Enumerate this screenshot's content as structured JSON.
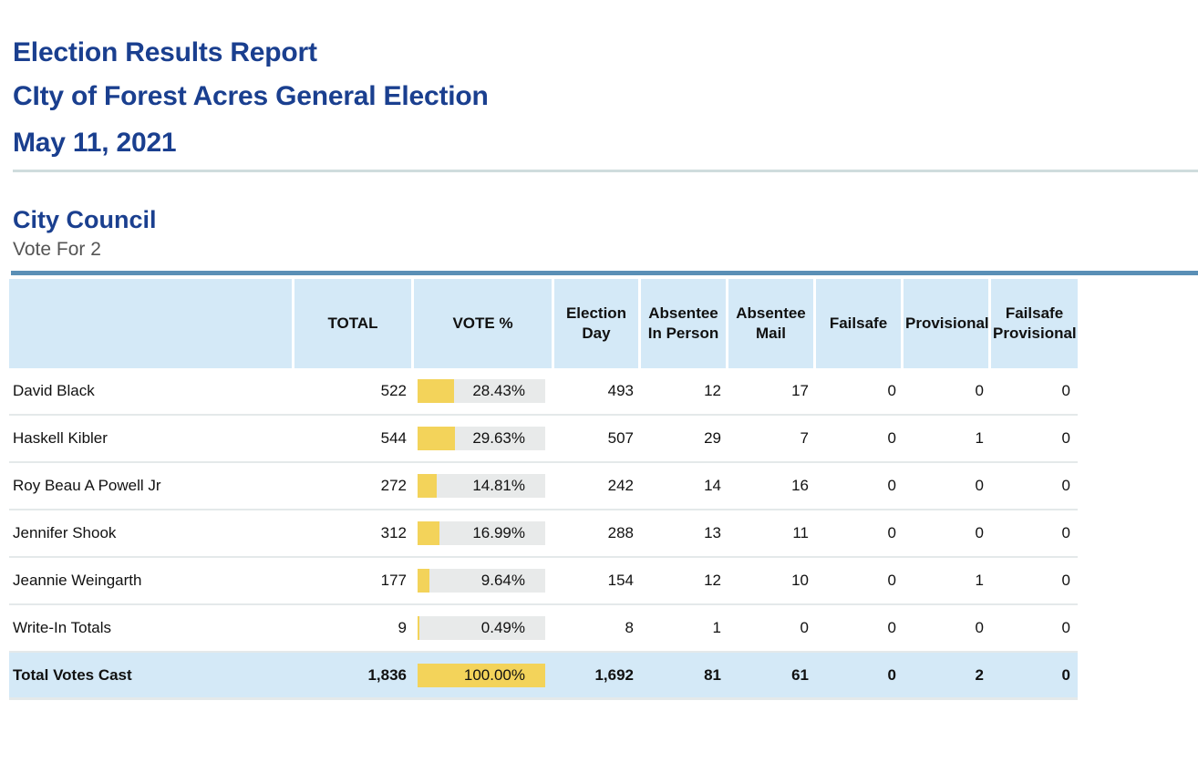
{
  "report": {
    "title_line1": "Election Results Report",
    "title_line2": "CIty of Forest Acres General Election",
    "title_line3": "May 11, 2021"
  },
  "contest": {
    "title": "City Council",
    "subtitle": "Vote For 2"
  },
  "table": {
    "headers": {
      "name": "",
      "total": "TOTAL",
      "vote_pct": "VOTE %",
      "election_day": "Election Day",
      "absentee_in_person": "Absentee In Person",
      "absentee_mail": "Absentee Mail",
      "failsafe": "Failsafe",
      "provisional": "Provisional",
      "failsafe_provisional": "Failsafe Provisional"
    },
    "rows": [
      {
        "name": "David Black",
        "total": "522",
        "pct_label": "28.43%",
        "pct": 28.43,
        "election_day": "493",
        "absentee_in_person": "12",
        "absentee_mail": "17",
        "failsafe": "0",
        "provisional": "0",
        "failsafe_provisional": "0"
      },
      {
        "name": "Haskell Kibler",
        "total": "544",
        "pct_label": "29.63%",
        "pct": 29.63,
        "election_day": "507",
        "absentee_in_person": "29",
        "absentee_mail": "7",
        "failsafe": "0",
        "provisional": "1",
        "failsafe_provisional": "0"
      },
      {
        "name": "Roy Beau A Powell Jr",
        "total": "272",
        "pct_label": "14.81%",
        "pct": 14.81,
        "election_day": "242",
        "absentee_in_person": "14",
        "absentee_mail": "16",
        "failsafe": "0",
        "provisional": "0",
        "failsafe_provisional": "0"
      },
      {
        "name": "Jennifer Shook",
        "total": "312",
        "pct_label": "16.99%",
        "pct": 16.99,
        "election_day": "288",
        "absentee_in_person": "13",
        "absentee_mail": "11",
        "failsafe": "0",
        "provisional": "0",
        "failsafe_provisional": "0"
      },
      {
        "name": "Jeannie Weingarth",
        "total": "177",
        "pct_label": "9.64%",
        "pct": 9.64,
        "election_day": "154",
        "absentee_in_person": "12",
        "absentee_mail": "10",
        "failsafe": "0",
        "provisional": "1",
        "failsafe_provisional": "0"
      },
      {
        "name": "Write-In Totals",
        "total": "9",
        "pct_label": "0.49%",
        "pct": 0.49,
        "election_day": "8",
        "absentee_in_person": "1",
        "absentee_mail": "0",
        "failsafe": "0",
        "provisional": "0",
        "failsafe_provisional": "0"
      }
    ],
    "total_row": {
      "name": "Total Votes Cast",
      "total": "1,836",
      "pct_label": "100.00%",
      "pct": 100,
      "election_day": "1,692",
      "absentee_in_person": "81",
      "absentee_mail": "61",
      "failsafe": "0",
      "provisional": "2",
      "failsafe_provisional": "0"
    }
  },
  "colors": {
    "title_blue": "#1a3f8f",
    "header_bg": "#d4e9f7",
    "bar_fill": "#f3d35a",
    "bar_track": "#e8eaea",
    "rule_blue": "#5a8fb6"
  }
}
